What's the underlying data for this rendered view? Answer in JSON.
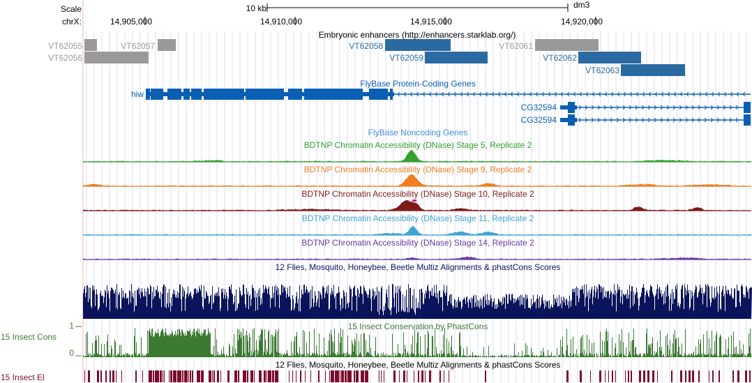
{
  "ruler": {
    "scale_label": "Scale",
    "scale_bar_label": "10 kb",
    "assembly": "dm3",
    "chrom_label": "chrX:",
    "ticks": [
      "14,905,000",
      "14,910,000",
      "14,915,000",
      "14,920,000"
    ]
  },
  "tracks": {
    "enhancers": {
      "title": "Embryonic enhancers (http://enhancers.starklab.org/)",
      "items": [
        "VT62055",
        "VT62057",
        "VT62056",
        "VT62058",
        "VT62059",
        "VT62061",
        "VT62062",
        "VT62063"
      ]
    },
    "flybase_genes": {
      "title": "FlyBase Protein-Coding Genes",
      "genes": [
        "hiw",
        "CG32594",
        "CG32594"
      ]
    },
    "flybase_noncoding": {
      "title": "FlyBase Noncoding Genes"
    },
    "dnase": [
      {
        "title": "BDTNP Chromatin Accessibility (DNase) Stage 5, Replicate 2",
        "color": "#33a02c"
      },
      {
        "title": "BDTNP Chromatin Accessibility (DNase) Stage 9, Replicate 2",
        "color": "#f07f22"
      },
      {
        "title": "BDTNP Chromatin Accessibility (DNase) Stage 10, Replicate 2",
        "color": "#7f1a1a"
      },
      {
        "title": "BDTNP Chromatin Accessibility (DNase) Stage 11, Replicate 2",
        "color": "#3ea6d0"
      },
      {
        "title": "BDTNP Chromatin Accessibility (DNase) Stage 14, Replicate 2",
        "color": "#6a3aa0"
      }
    ],
    "multiz": {
      "title": "12 Flies, Mosquito, Honeybee, Beetle Multiz Alignments & phastCons Scores",
      "color": "#0a145a"
    },
    "cons": {
      "side_label": "15 Insect Cons",
      "title": "15 Insect Conservation by PhastCons",
      "ymax": "1",
      "ymin": "0",
      "color": "#3c7a32"
    },
    "elements": {
      "side_label": "15 Insect El",
      "title": "12 Flies, Mosquito, Honeybee, Beetle Multiz Alignments & phastCons Scores",
      "color": "#7a0c2c"
    }
  },
  "colors": {
    "gene_blue": "#0a5fb4",
    "enh_gray": "#999999",
    "enh_blue": "#2b6aa0",
    "grid": "#dcdcf6",
    "left_edge": "#f4b0b0"
  }
}
